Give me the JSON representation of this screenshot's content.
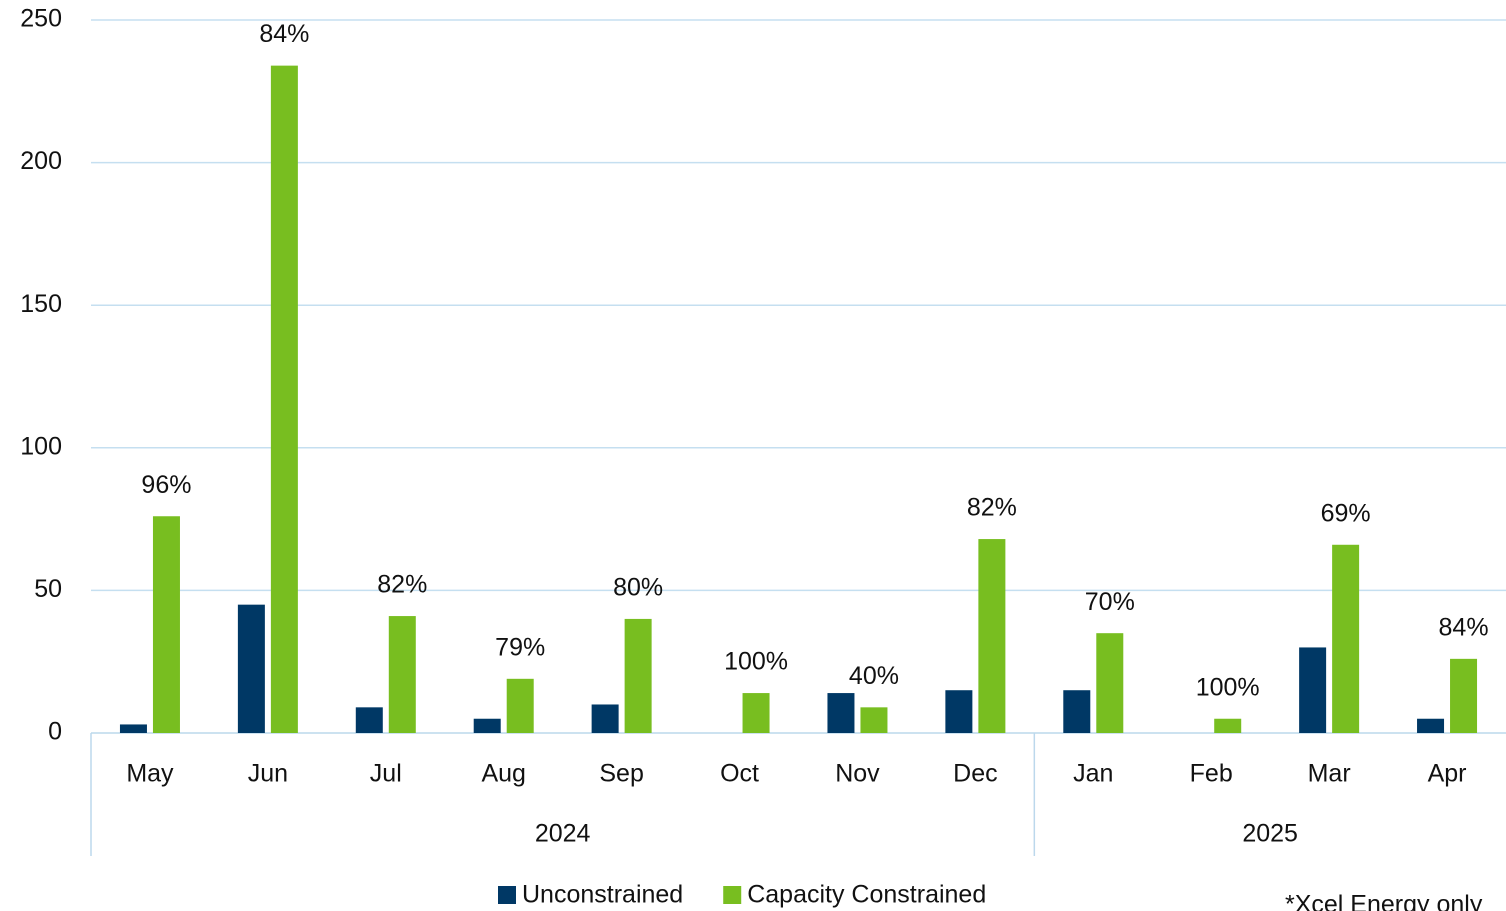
{
  "chart_data": {
    "type": "bar",
    "groups": [
      {
        "label": "2024",
        "categories": [
          "May",
          "Jun",
          "Jul",
          "Aug",
          "Sep",
          "Oct",
          "Nov",
          "Dec"
        ]
      },
      {
        "label": "2025",
        "categories": [
          "Jan",
          "Feb",
          "Mar",
          "Apr"
        ]
      }
    ],
    "series": [
      {
        "name": "Unconstrained",
        "color": "#003865",
        "values": [
          3,
          45,
          9,
          5,
          10,
          0,
          14,
          15,
          15,
          0,
          30,
          5
        ]
      },
      {
        "name": "Capacity Constrained",
        "color": "#78be20",
        "values": [
          76,
          234,
          41,
          19,
          40,
          14,
          9,
          68,
          35,
          5,
          66,
          26
        ],
        "annotations": [
          "96%",
          "84%",
          "82%",
          "79%",
          "80%",
          "100%",
          "40%",
          "82%",
          "70%",
          "100%",
          "69%",
          "84%"
        ]
      }
    ],
    "ylim": [
      0,
      250
    ],
    "yticks": [
      0,
      50,
      100,
      150,
      200,
      250
    ],
    "grid": true,
    "legend": "bottom",
    "note": "*Xcel Energy only"
  }
}
